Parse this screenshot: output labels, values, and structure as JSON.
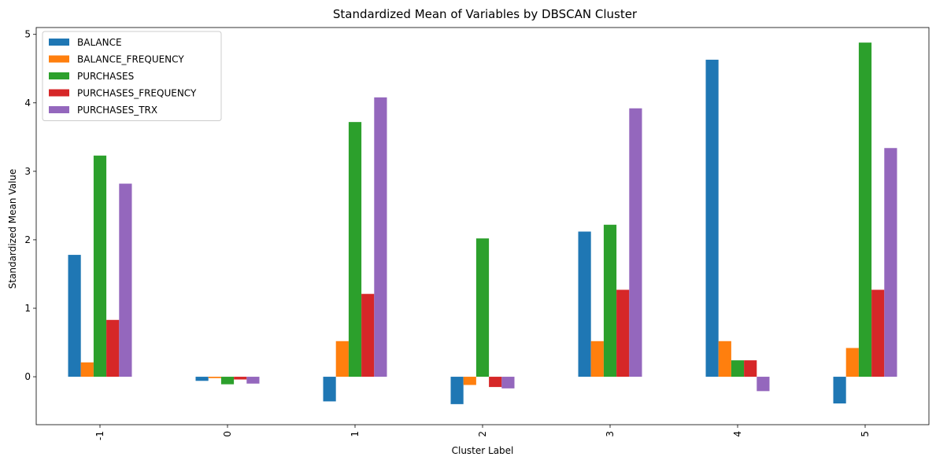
{
  "chart_data": {
    "type": "bar",
    "title": "Standardized Mean of Variables by DBSCAN Cluster",
    "xlabel": "Cluster Label",
    "ylabel": "Standardized Mean Value",
    "categories": [
      "-1",
      "0",
      "1",
      "2",
      "3",
      "4",
      "5"
    ],
    "ylim": [
      -0.7,
      5.1
    ],
    "yticks": [
      0,
      1,
      2,
      3,
      4,
      5
    ],
    "grid": false,
    "legend_position": "top-left",
    "series": [
      {
        "name": "BALANCE",
        "color": "#1f77b4",
        "values": [
          1.78,
          -0.06,
          -0.36,
          -0.4,
          2.12,
          4.63,
          -0.39
        ]
      },
      {
        "name": "BALANCE_FREQUENCY",
        "color": "#ff7f0e",
        "values": [
          0.21,
          -0.02,
          0.52,
          -0.12,
          0.52,
          0.52,
          0.42
        ]
      },
      {
        "name": "PURCHASES",
        "color": "#2ca02c",
        "values": [
          3.23,
          -0.11,
          3.72,
          2.02,
          2.22,
          0.24,
          4.88
        ]
      },
      {
        "name": "PURCHASES_FREQUENCY",
        "color": "#d62728",
        "values": [
          0.83,
          -0.04,
          1.21,
          -0.15,
          1.27,
          0.24,
          1.27
        ]
      },
      {
        "name": "PURCHASES_TRX",
        "color": "#9467bd",
        "values": [
          2.82,
          -0.1,
          4.08,
          -0.17,
          3.92,
          -0.21,
          3.34
        ]
      }
    ]
  }
}
